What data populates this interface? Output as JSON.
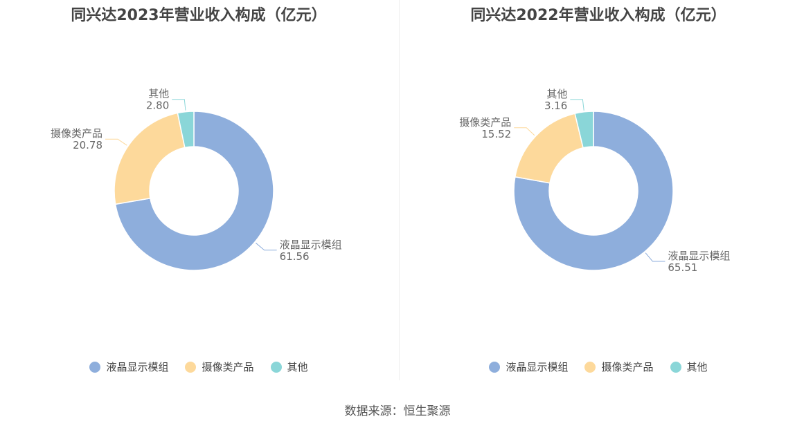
{
  "source": "数据来源：恒生聚源",
  "colors": {
    "lcd": "#8eaedc",
    "camera": "#fdd99b",
    "other": "#8ad6d8"
  },
  "chart_data": [
    {
      "type": "pie",
      "title": "同兴达2023年营业收入构成（亿元）",
      "categories": [
        "液晶显示模组",
        "摄像类产品",
        "其他"
      ],
      "values": [
        61.56,
        20.78,
        2.8
      ],
      "value_labels": [
        "61.56",
        "20.78",
        "2.80"
      ],
      "legend_placement": "bottom"
    },
    {
      "type": "pie",
      "title": "同兴达2022年营业收入构成（亿元）",
      "categories": [
        "液晶显示模组",
        "摄像类产品",
        "其他"
      ],
      "values": [
        65.51,
        15.52,
        3.16
      ],
      "value_labels": [
        "65.51",
        "15.52",
        "3.16"
      ],
      "legend_placement": "bottom"
    }
  ]
}
